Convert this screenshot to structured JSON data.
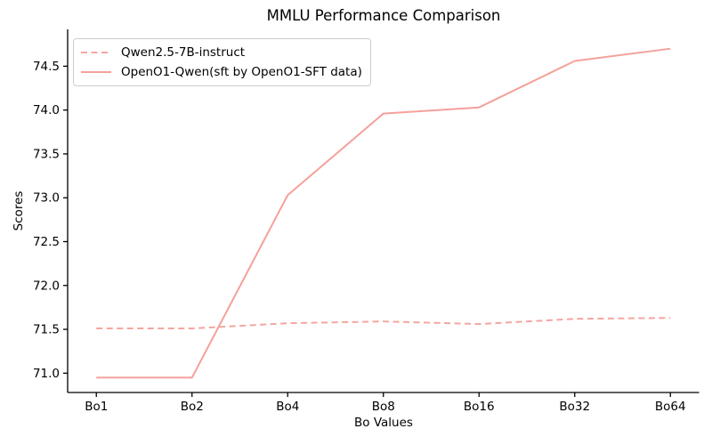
{
  "title": "MMLU Performance Comparison",
  "chart_data": {
    "type": "line",
    "title": "MMLU Performance Comparison",
    "xlabel": "Bo Values",
    "ylabel": "Scores",
    "categories": [
      "Bo1",
      "Bo2",
      "Bo4",
      "Bo8",
      "Bo16",
      "Bo32",
      "Bo64"
    ],
    "series": [
      {
        "name": "Qwen2.5-7B-instruct",
        "style": "dashed",
        "color": "#f4a6a0",
        "values": [
          71.51,
          71.51,
          71.57,
          71.59,
          71.56,
          71.62,
          71.63
        ]
      },
      {
        "name": "OpenO1-Qwen(sft by OpenO1-SFT data)",
        "style": "solid",
        "color": "#f4a19b",
        "values": [
          70.95,
          70.95,
          73.03,
          73.96,
          74.03,
          74.56,
          74.7
        ]
      }
    ],
    "yticks": [
      71.0,
      71.5,
      72.0,
      72.5,
      73.0,
      73.5,
      74.0,
      74.5
    ],
    "ytick_labels": [
      "71.0",
      "71.5",
      "72.0",
      "72.5",
      "73.0",
      "73.5",
      "74.0",
      "74.5"
    ],
    "ylim": [
      70.78,
      74.92
    ],
    "grid": false,
    "legend_position": "upper left",
    "axis_color": "#000000",
    "background_color": "#ffffff"
  }
}
